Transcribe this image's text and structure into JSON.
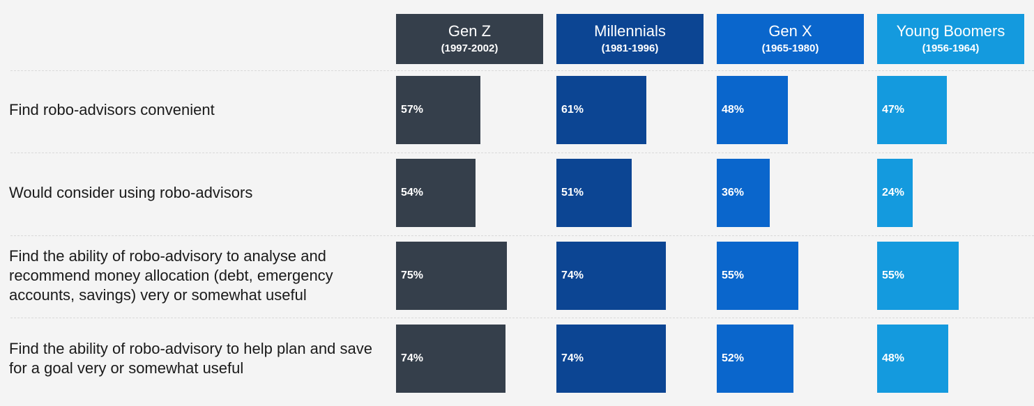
{
  "chart_data": {
    "type": "bar",
    "groups": [
      {
        "name": "Gen Z",
        "years": "(1997-2002)",
        "color": "#353f4b"
      },
      {
        "name": "Millennials",
        "years": "(1981-1996)",
        "color": "#0c4593"
      },
      {
        "name": "Gen X",
        "years": "(1965-1980)",
        "color": "#0a66cc"
      },
      {
        "name": "Young Boomers",
        "years": "(1956-1964)",
        "color": "#149ade"
      }
    ],
    "categories": [
      "Find robo-advisors convenient",
      "Would consider using robo-advisors",
      "Find the ability of robo-advisory to analyse and recommend money allocation (debt, emergency accounts, savings) very or somewhat useful",
      "Find the ability of robo-advisory to help plan and save for a goal very or somewhat useful"
    ],
    "series": [
      {
        "name": "Gen Z",
        "values": [
          57,
          54,
          75,
          74
        ],
        "labels": [
          "57%",
          "54%",
          "75%",
          "74%"
        ]
      },
      {
        "name": "Millennials",
        "values": [
          61,
          51,
          74,
          74
        ],
        "labels": [
          "61%",
          "51%",
          "74%",
          "74%"
        ]
      },
      {
        "name": "Gen X",
        "values": [
          48,
          36,
          55,
          52
        ],
        "labels": [
          "48%",
          "36%",
          "55%",
          "52%"
        ]
      },
      {
        "name": "Young Boomers",
        "values": [
          47,
          24,
          55,
          48
        ],
        "labels": [
          "47%",
          "24%",
          "55%",
          "48%"
        ]
      }
    ],
    "unit": "%",
    "xlim": [
      0,
      100
    ]
  }
}
